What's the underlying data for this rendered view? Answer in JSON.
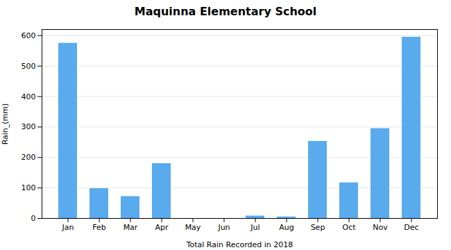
{
  "chart_data": {
    "type": "bar",
    "title": "Maquinna Elementary School",
    "xlabel": "Total Rain Recorded in 2018",
    "ylabel": "Rain_(mm)",
    "categories": [
      "Jan",
      "Feb",
      "Mar",
      "Apr",
      "May",
      "Jun",
      "Jul",
      "Aug",
      "Sep",
      "Oct",
      "Nov",
      "Dec"
    ],
    "values": [
      575,
      98,
      72,
      180,
      0,
      0,
      8,
      5,
      253,
      117,
      295,
      595
    ],
    "color": "#5aaaee",
    "ylim": [
      0,
      620
    ],
    "yticks": [
      0,
      100,
      200,
      300,
      400,
      500,
      600
    ],
    "grid": true
  }
}
